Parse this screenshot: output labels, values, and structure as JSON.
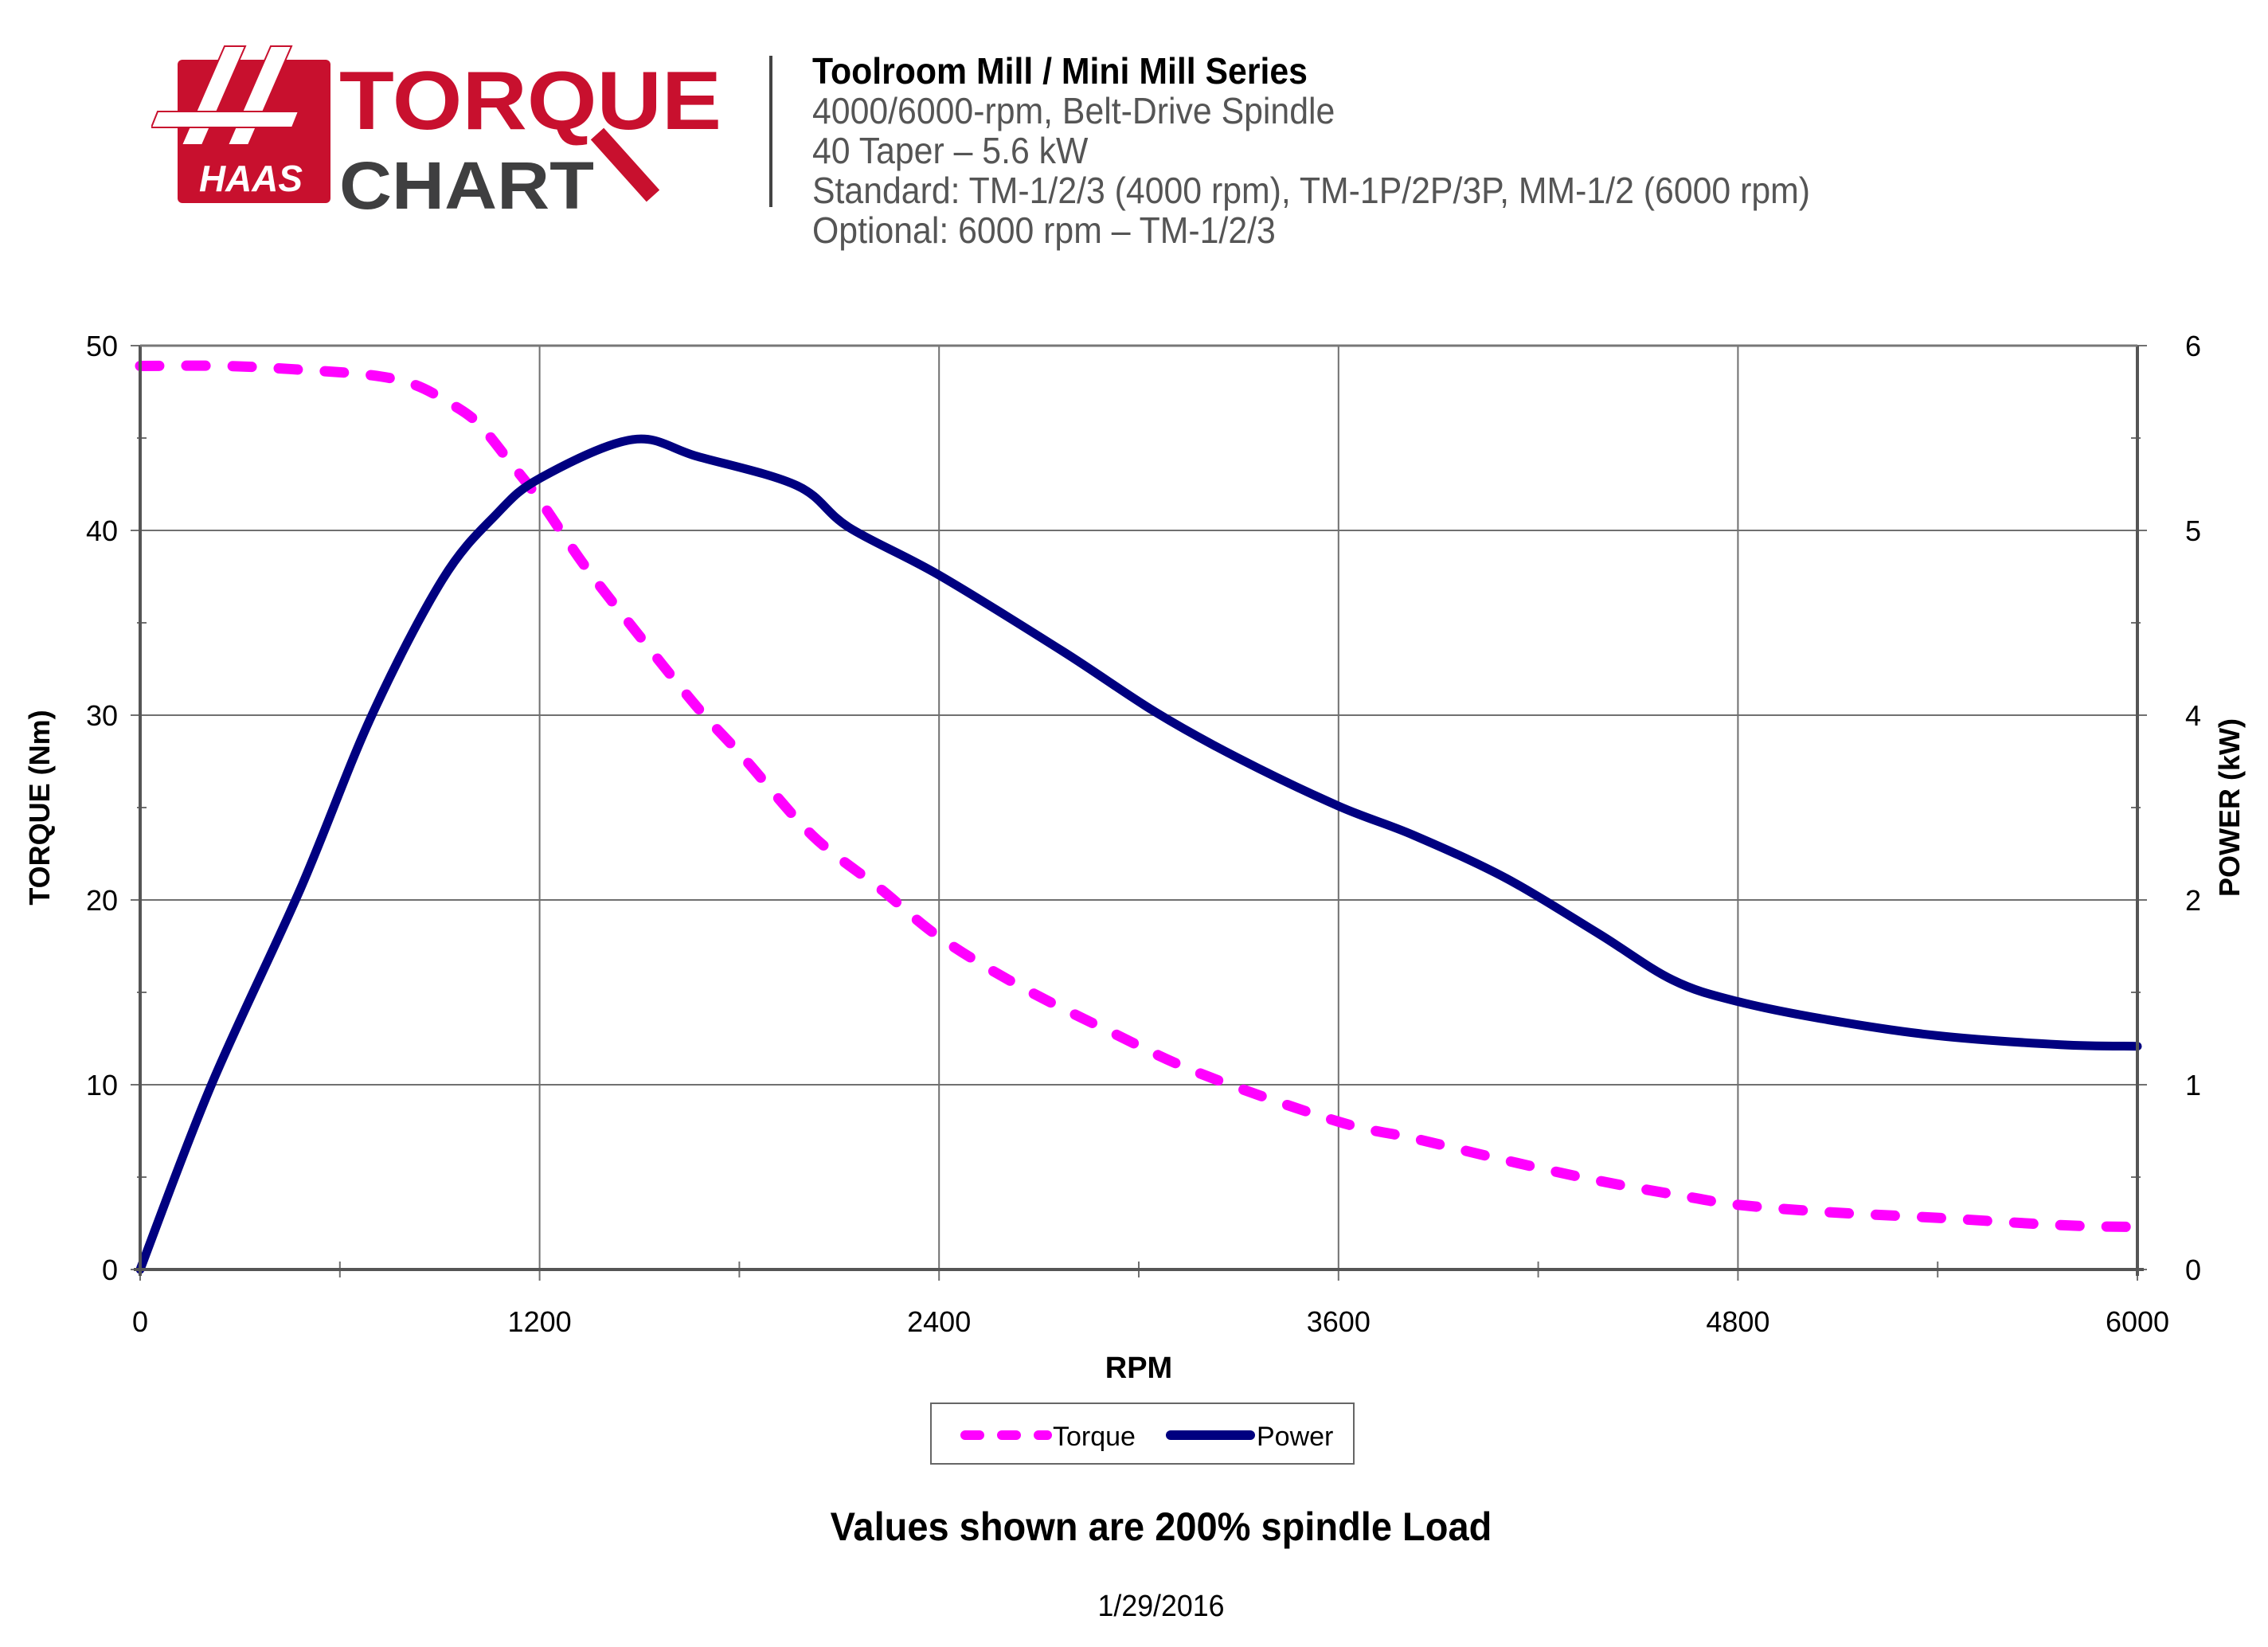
{
  "brand": {
    "logo_mark": "HAAS",
    "logo_word_1": "TORQUE",
    "logo_word_2": "CHART",
    "colors": {
      "red": "#C8102E",
      "dark": "#3F3F40"
    }
  },
  "header": {
    "title": "Toolroom Mill / Mini Mill Series",
    "lines": [
      "4000/6000-rpm, Belt-Drive Spindle",
      "40 Taper – 5.6 kW",
      "Standard: TM-1/2/3 (4000 rpm), TM-1P/2P/3P, MM-1/2 (6000 rpm)",
      "Optional: 6000 rpm – TM-1/2/3"
    ]
  },
  "chart_data": {
    "type": "line",
    "title": "Toolroom Mill / Mini Mill Series",
    "xlabel": "RPM",
    "ylabel": "TORQUE (Nm)",
    "y2label": "POWER (kW)",
    "xlim": [
      0,
      6000
    ],
    "ylim": [
      0,
      50
    ],
    "y2lim": [
      0,
      6
    ],
    "x_ticks": [
      "0",
      "1200",
      "2400",
      "3600",
      "4800",
      "6000"
    ],
    "x_tick_values": [
      0,
      1200,
      2400,
      3600,
      4800,
      6000
    ],
    "y_ticks": [
      "0",
      "10",
      "20",
      "30",
      "40",
      "50"
    ],
    "y_tick_values": [
      0,
      10,
      20,
      30,
      40,
      50
    ],
    "y2_ticks": [
      "0",
      "1",
      "2",
      "4",
      "5",
      "6"
    ],
    "grid": true,
    "legend_position": "bottom-center",
    "colors": {
      "torque": "#FF00FF",
      "power": "#000080",
      "grid": "#707070"
    },
    "series": [
      {
        "name": "Torque",
        "axis": "left",
        "style": "dashed",
        "x": [
          0,
          256,
          481,
          694,
          822,
          929,
          1015,
          1111,
          1202,
          1335,
          1495,
          1675,
          1813,
          2019,
          2224,
          2400,
          2636,
          2911,
          3186,
          3600,
          3826,
          4104,
          4382,
          4660,
          4800,
          5075,
          5394,
          5769,
          6000
        ],
        "y": [
          48.9,
          48.9,
          48.7,
          48.4,
          47.9,
          46.9,
          45.8,
          43.7,
          41.6,
          38.1,
          34.4,
          30.4,
          27.7,
          23.5,
          20.6,
          18.0,
          15.4,
          12.9,
          10.6,
          8.0,
          7.1,
          5.9,
          4.8,
          3.9,
          3.5,
          3.1,
          2.8,
          2.4,
          2.3
        ]
      },
      {
        "name": "Power",
        "axis": "right",
        "style": "solid",
        "x": [
          0,
          214,
          481,
          694,
          908,
          1068,
          1202,
          1479,
          1675,
          1974,
          2129,
          2400,
          2775,
          3050,
          3300,
          3600,
          3826,
          4104,
          4382,
          4604,
          4800,
          5075,
          5394,
          5769,
          6000
        ],
        "y": [
          0,
          1.2,
          2.47,
          3.59,
          4.48,
          4.9,
          5.14,
          5.39,
          5.28,
          5.09,
          4.82,
          4.51,
          4.01,
          3.62,
          3.32,
          3.01,
          2.82,
          2.54,
          2.18,
          1.88,
          1.74,
          1.62,
          1.52,
          1.46,
          1.45
        ]
      }
    ]
  },
  "footer": {
    "note": "Values shown are 200% spindle Load",
    "date": "1/29/2016"
  }
}
